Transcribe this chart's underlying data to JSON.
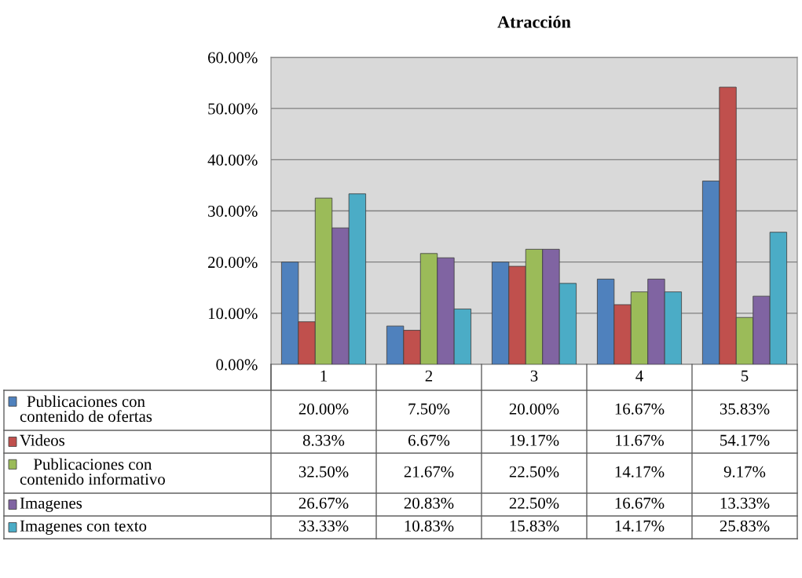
{
  "chart_data": {
    "type": "bar",
    "title": "Atracción",
    "categories": [
      "1",
      "2",
      "3",
      "4",
      "5"
    ],
    "series": [
      {
        "name": "Publicaciones con contenido de ofertas",
        "color": "#4f81bd",
        "values": [
          20.0,
          7.5,
          20.0,
          16.67,
          35.83
        ],
        "value_labels": [
          "20.00%",
          "7.50%",
          "20.00%",
          "16.67%",
          "35.83%"
        ]
      },
      {
        "name": "Videos",
        "color": "#c0504d",
        "values": [
          8.33,
          6.67,
          19.17,
          11.67,
          54.17
        ],
        "value_labels": [
          "8.33%",
          "6.67%",
          "19.17%",
          "11.67%",
          "54.17%"
        ]
      },
      {
        "name": "Publicaciones con contenido informativo",
        "color": "#9bbb59",
        "values": [
          32.5,
          21.67,
          22.5,
          14.17,
          9.17
        ],
        "value_labels": [
          "32.50%",
          "21.67%",
          "22.50%",
          "14.17%",
          "9.17%"
        ]
      },
      {
        "name": "Imagenes",
        "color": "#8064a2",
        "values": [
          26.67,
          20.83,
          22.5,
          16.67,
          13.33
        ],
        "value_labels": [
          "26.67%",
          "20.83%",
          "22.50%",
          "16.67%",
          "13.33%"
        ]
      },
      {
        "name": "Imagenes con texto",
        "color": "#4bacc6",
        "values": [
          33.33,
          10.83,
          15.83,
          14.17,
          25.83
        ],
        "value_labels": [
          "33.33%",
          "10.83%",
          "15.83%",
          "14.17%",
          "25.83%"
        ]
      }
    ],
    "ylim": [
      0,
      60
    ],
    "yticks": [
      {
        "value": 0,
        "label": "0.00%"
      },
      {
        "value": 10,
        "label": "10.00%"
      },
      {
        "value": 20,
        "label": "20.00%"
      },
      {
        "value": 30,
        "label": "30.00%"
      },
      {
        "value": 40,
        "label": "40.00%"
      },
      {
        "value": 50,
        "label": "50.00%"
      },
      {
        "value": 60,
        "label": "60.00%"
      }
    ],
    "grid": "y",
    "legend": "bottom"
  }
}
